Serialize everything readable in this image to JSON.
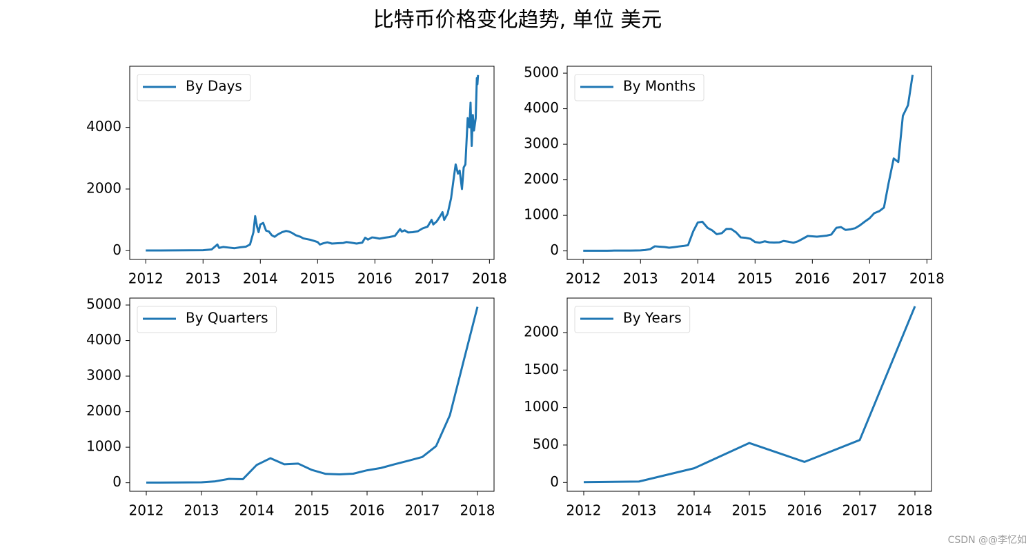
{
  "title": "比特币价格变化趋势, 单位 美元",
  "watermark": "CSDN @@李忆如",
  "chart_data": [
    {
      "type": "line",
      "legend": "upper left",
      "xlim": [
        2011.72,
        2018.08
      ],
      "ylim": [
        -285,
        5985
      ],
      "xticks": [
        2012,
        2013,
        2014,
        2015,
        2016,
        2017,
        2018
      ],
      "yticks": [
        0,
        2000,
        4000
      ],
      "x": [
        2012.0,
        2012.25,
        2012.5,
        2012.75,
        2013.0,
        2013.15,
        2013.25,
        2013.28,
        2013.35,
        2013.45,
        2013.55,
        2013.65,
        2013.75,
        2013.82,
        2013.88,
        2013.91,
        2013.94,
        2013.97,
        2014.0,
        2014.05,
        2014.1,
        2014.15,
        2014.2,
        2014.25,
        2014.3,
        2014.38,
        2014.45,
        2014.5,
        2014.55,
        2014.62,
        2014.7,
        2014.75,
        2014.8,
        2014.88,
        2014.95,
        2015.0,
        2015.04,
        2015.1,
        2015.17,
        2015.25,
        2015.35,
        2015.45,
        2015.5,
        2015.58,
        2015.68,
        2015.78,
        2015.83,
        2015.88,
        2015.95,
        2016.0,
        2016.08,
        2016.17,
        2016.25,
        2016.35,
        2016.44,
        2016.47,
        2016.52,
        2016.58,
        2016.66,
        2016.75,
        2016.83,
        2016.92,
        2016.99,
        2017.02,
        2017.08,
        2017.15,
        2017.18,
        2017.21,
        2017.27,
        2017.33,
        2017.38,
        2017.41,
        2017.45,
        2017.48,
        2017.52,
        2017.55,
        2017.58,
        2017.62,
        2017.65,
        2017.67,
        2017.69,
        2017.71,
        2017.73,
        2017.76,
        2017.78,
        2017.79,
        2017.8
      ],
      "series": [
        {
          "name": "By Days",
          "color": "#1f77b4",
          "values": [
            5,
            5,
            8,
            11,
            14,
            40,
            200,
            90,
            120,
            100,
            80,
            110,
            130,
            200,
            600,
            1120,
            800,
            600,
            850,
            900,
            650,
            620,
            500,
            450,
            520,
            600,
            640,
            620,
            580,
            500,
            450,
            400,
            380,
            350,
            310,
            280,
            200,
            240,
            270,
            230,
            240,
            250,
            280,
            260,
            230,
            260,
            420,
            360,
            430,
            420,
            390,
            420,
            440,
            480,
            700,
            620,
            660,
            590,
            600,
            630,
            720,
            780,
            1000,
            850,
            950,
            1150,
            1250,
            1000,
            1200,
            1700,
            2400,
            2800,
            2500,
            2600,
            2000,
            2700,
            2800,
            4300,
            4000,
            4800,
            3400,
            4400,
            3900,
            4300,
            5600,
            5400,
            5700
          ]
        }
      ]
    },
    {
      "type": "line",
      "legend": "upper left",
      "xlim": [
        2011.72,
        2018.08
      ],
      "ylim": [
        -240,
        5195
      ],
      "xticks": [
        2012,
        2013,
        2014,
        2015,
        2016,
        2017,
        2018
      ],
      "yticks": [
        0,
        1000,
        2000,
        3000,
        4000,
        5000
      ],
      "x": [
        2012.0,
        2012.08,
        2012.17,
        2012.25,
        2012.33,
        2012.42,
        2012.5,
        2012.58,
        2012.67,
        2012.75,
        2012.83,
        2012.92,
        2013.0,
        2013.08,
        2013.17,
        2013.25,
        2013.33,
        2013.42,
        2013.5,
        2013.58,
        2013.67,
        2013.75,
        2013.83,
        2013.92,
        2014.0,
        2014.08,
        2014.17,
        2014.25,
        2014.33,
        2014.42,
        2014.5,
        2014.58,
        2014.67,
        2014.75,
        2014.83,
        2014.92,
        2015.0,
        2015.08,
        2015.17,
        2015.25,
        2015.33,
        2015.42,
        2015.5,
        2015.58,
        2015.67,
        2015.75,
        2015.83,
        2015.92,
        2016.0,
        2016.08,
        2016.17,
        2016.25,
        2016.33,
        2016.42,
        2016.5,
        2016.58,
        2016.67,
        2016.75,
        2016.83,
        2016.92,
        2017.0,
        2017.08,
        2017.17,
        2017.25,
        2017.33,
        2017.42,
        2017.5,
        2017.58,
        2017.67,
        2017.75
      ],
      "series": [
        {
          "name": "By Months",
          "color": "#1f77b4",
          "values": [
            5,
            5,
            5,
            5,
            5,
            6,
            8,
            10,
            11,
            11,
            11,
            13,
            15,
            25,
            50,
            130,
            120,
            110,
            90,
            105,
            125,
            140,
            160,
            550,
            800,
            820,
            650,
            580,
            470,
            500,
            620,
            620,
            520,
            380,
            370,
            340,
            250,
            230,
            270,
            240,
            235,
            240,
            280,
            260,
            230,
            270,
            340,
            420,
            410,
            400,
            415,
            430,
            460,
            650,
            670,
            590,
            610,
            640,
            720,
            830,
            920,
            1060,
            1120,
            1220,
            1900,
            2600,
            2500,
            3800,
            4100,
            4950
          ]
        }
      ]
    },
    {
      "type": "line",
      "legend": "upper left",
      "xlim": [
        2011.7,
        2018.3
      ],
      "ylim": [
        -240,
        5195
      ],
      "xticks": [
        2012,
        2013,
        2014,
        2015,
        2016,
        2017,
        2018
      ],
      "yticks": [
        0,
        1000,
        2000,
        3000,
        4000,
        5000
      ],
      "x": [
        2012.0,
        2012.25,
        2012.5,
        2012.75,
        2013.0,
        2013.25,
        2013.5,
        2013.75,
        2014.0,
        2014.25,
        2014.5,
        2014.75,
        2015.0,
        2015.25,
        2015.5,
        2015.75,
        2016.0,
        2016.25,
        2016.5,
        2016.75,
        2017.0,
        2017.25,
        2017.5,
        2017.75,
        2018.0
      ],
      "series": [
        {
          "name": "By Quarters",
          "color": "#1f77b4",
          "values": [
            5,
            5,
            7,
            11,
            13,
            40,
            110,
            100,
            500,
            690,
            520,
            540,
            360,
            250,
            235,
            255,
            350,
            415,
            520,
            620,
            725,
            1030,
            1900,
            3430,
            4950
          ]
        }
      ]
    },
    {
      "type": "line",
      "legend": "upper left",
      "xlim": [
        2011.7,
        2018.3
      ],
      "ylim": [
        -117,
        2460
      ],
      "xticks": [
        2012,
        2013,
        2014,
        2015,
        2016,
        2017,
        2018
      ],
      "yticks": [
        0,
        500,
        1000,
        1500,
        2000
      ],
      "x": [
        2012,
        2013,
        2014,
        2015,
        2016,
        2017,
        2018
      ],
      "series": [
        {
          "name": "By Years",
          "color": "#1f77b4",
          "values": [
            5,
            13,
            190,
            527,
            275,
            567,
            2350
          ]
        }
      ]
    }
  ]
}
